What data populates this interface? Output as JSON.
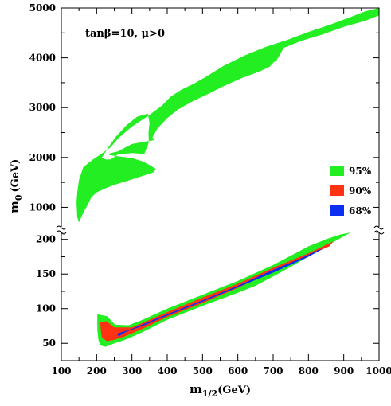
{
  "chart_data": {
    "type": "area",
    "title": "",
    "xlabel": {
      "main": "m",
      "sub": "1/2",
      "unit": "(GeV)"
    },
    "ylabel": {
      "main": "m",
      "sub": "0",
      "unit": "(GeV)"
    },
    "annotation": "tanβ=10, μ>0",
    "xlim": [
      100,
      1000
    ],
    "xticks": [
      "100",
      "200",
      "300",
      "400",
      "500",
      "600",
      "700",
      "800",
      "900",
      "1000"
    ],
    "ylim_upper": [
      400,
      5000
    ],
    "ylim_lower": [
      25,
      210
    ],
    "yticks_upper": [
      "1000",
      "2000",
      "3000",
      "4000",
      "5000"
    ],
    "yticks_lower": [
      "50",
      "100",
      "150",
      "200"
    ],
    "axis_break": true,
    "grid": false,
    "legend_position": "right",
    "colors": {
      "95%": "#22ee22",
      "90%": "#ff3311",
      "68%": "#0b2ef0"
    },
    "series": [
      {
        "name": "95%",
        "color": "#22ee22",
        "region": "upper",
        "outer": [
          [
            150,
            1550
          ],
          [
            162,
            1800
          ],
          [
            170,
            1850
          ],
          [
            190,
            1960
          ],
          [
            215,
            2080
          ],
          [
            240,
            2210
          ],
          [
            262,
            2390
          ],
          [
            300,
            2620
          ],
          [
            345,
            2830
          ],
          [
            385,
            3040
          ],
          [
            410,
            3220
          ],
          [
            440,
            3360
          ],
          [
            475,
            3480
          ],
          [
            510,
            3620
          ],
          [
            560,
            3840
          ],
          [
            620,
            4050
          ],
          [
            680,
            4220
          ],
          [
            740,
            4360
          ],
          [
            800,
            4520
          ],
          [
            860,
            4660
          ],
          [
            920,
            4820
          ],
          [
            960,
            4930
          ],
          [
            1000,
            5000
          ],
          [
            1000,
            4850
          ],
          [
            960,
            4740
          ],
          [
            900,
            4620
          ],
          [
            840,
            4470
          ],
          [
            780,
            4340
          ],
          [
            730,
            4200
          ],
          [
            710,
            3950
          ],
          [
            700,
            3900
          ],
          [
            690,
            3820
          ],
          [
            660,
            3720
          ],
          [
            610,
            3590
          ],
          [
            560,
            3430
          ],
          [
            520,
            3290
          ],
          [
            470,
            3120
          ],
          [
            430,
            2960
          ],
          [
            400,
            2790
          ],
          [
            372,
            2580
          ],
          [
            358,
            2400
          ],
          [
            365,
            2350
          ],
          [
            340,
            2320
          ],
          [
            300,
            2270
          ],
          [
            260,
            2120
          ],
          [
            240,
            2090
          ],
          [
            235,
            2050
          ],
          [
            265,
            2020
          ],
          [
            300,
            1990
          ],
          [
            330,
            1920
          ],
          [
            350,
            1850
          ],
          [
            368,
            1770
          ],
          [
            360,
            1700
          ],
          [
            300,
            1560
          ],
          [
            250,
            1450
          ],
          [
            225,
            1380
          ],
          [
            200,
            1300
          ],
          [
            185,
            1200
          ],
          [
            175,
            1050
          ],
          [
            165,
            930
          ],
          [
            155,
            780
          ],
          [
            150,
            700
          ],
          [
            145,
            800
          ],
          [
            143,
            1100
          ],
          [
            145,
            1300
          ],
          [
            150,
            1550
          ]
        ],
        "hole": [
          [
            215,
            2000
          ],
          [
            233,
            2200
          ],
          [
            255,
            2420
          ],
          [
            285,
            2650
          ],
          [
            315,
            2820
          ],
          [
            345,
            2880
          ],
          [
            350,
            2700
          ],
          [
            347,
            2500
          ],
          [
            348,
            2300
          ],
          [
            335,
            2070
          ],
          [
            300,
            2090
          ],
          [
            260,
            2060
          ],
          [
            240,
            1960
          ],
          [
            225,
            1960
          ],
          [
            215,
            2000
          ]
        ]
      },
      {
        "name": "95%",
        "color": "#22ee22",
        "region": "lower",
        "outer": [
          [
            202,
            92
          ],
          [
            230,
            89
          ],
          [
            252,
            77
          ],
          [
            290,
            76
          ],
          [
            330,
            84
          ],
          [
            400,
            100
          ],
          [
            500,
            120
          ],
          [
            600,
            140
          ],
          [
            700,
            163
          ],
          [
            800,
            190
          ],
          [
            855,
            201
          ],
          [
            890,
            207
          ],
          [
            920,
            210
          ],
          [
            895,
            203
          ],
          [
            850,
            190
          ],
          [
            800,
            175
          ],
          [
            720,
            152
          ],
          [
            650,
            133
          ],
          [
            600,
            123
          ],
          [
            500,
            104
          ],
          [
            400,
            84
          ],
          [
            330,
            66
          ],
          [
            280,
            55
          ],
          [
            245,
            49
          ],
          [
            225,
            45
          ],
          [
            210,
            47
          ],
          [
            205,
            55
          ],
          [
            202,
            70
          ],
          [
            202,
            92
          ]
        ]
      },
      {
        "name": "90%",
        "color": "#ff3311",
        "region": "lower",
        "outer": [
          [
            210,
            80
          ],
          [
            228,
            82
          ],
          [
            250,
            73
          ],
          [
            300,
            73
          ],
          [
            400,
            95
          ],
          [
            500,
            116
          ],
          [
            600,
            136
          ],
          [
            700,
            159
          ],
          [
            800,
            180
          ],
          [
            870,
            197
          ],
          [
            860,
            190
          ],
          [
            800,
            177
          ],
          [
            700,
            154
          ],
          [
            600,
            130
          ],
          [
            500,
            108
          ],
          [
            400,
            88
          ],
          [
            330,
            71
          ],
          [
            280,
            60
          ],
          [
            250,
            55
          ],
          [
            230,
            53
          ],
          [
            215,
            58
          ],
          [
            212,
            68
          ],
          [
            210,
            80
          ]
        ]
      },
      {
        "name": "68%",
        "color": "#0b2ef0",
        "region": "lower",
        "outer": [
          [
            258,
            64
          ],
          [
            300,
            71
          ],
          [
            400,
            92
          ],
          [
            500,
            112
          ],
          [
            600,
            133
          ],
          [
            700,
            156
          ],
          [
            780,
            173
          ],
          [
            830,
            185
          ],
          [
            840,
            186
          ],
          [
            800,
            175
          ],
          [
            700,
            152
          ],
          [
            600,
            131
          ],
          [
            500,
            110
          ],
          [
            400,
            90
          ],
          [
            330,
            75
          ],
          [
            285,
            67
          ],
          [
            262,
            60
          ],
          [
            258,
            64
          ]
        ]
      }
    ]
  }
}
